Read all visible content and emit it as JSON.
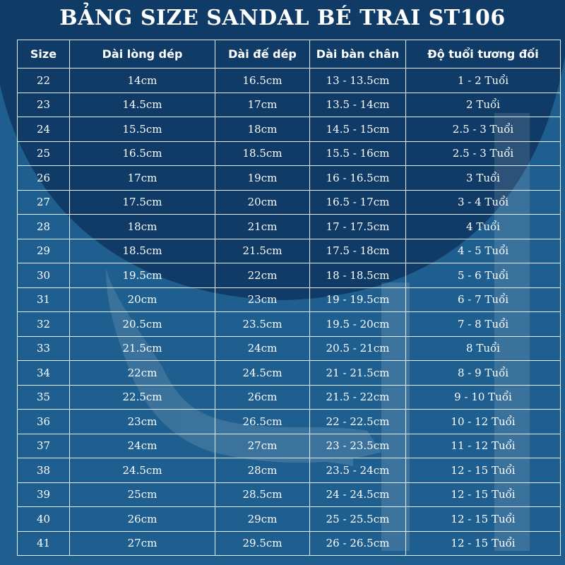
{
  "title": "BẢNG SIZE SANDAL BÉ TRAI ST106",
  "colors": {
    "background": "#1f5f8f",
    "overlay": "#0f3b66",
    "text": "#ffffff",
    "grid": "#e6eef5"
  },
  "table": {
    "headers": [
      "Size",
      "Dài lòng dép",
      "Dài đế dép",
      "Dài bàn chân",
      "Độ tuổi tương đối"
    ],
    "rows": [
      [
        "22",
        "14cm",
        "16.5cm",
        "13 - 13.5cm",
        "1 - 2 Tuổi"
      ],
      [
        "23",
        "14.5cm",
        "17cm",
        "13.5 - 14cm",
        "2 Tuổi"
      ],
      [
        "24",
        "15.5cm",
        "18cm",
        "14.5 - 15cm",
        "2.5 - 3 Tuổi"
      ],
      [
        "25",
        "16.5cm",
        "18.5cm",
        "15.5 - 16cm",
        "2.5 - 3 Tuổi"
      ],
      [
        "26",
        "17cm",
        "19cm",
        "16 - 16.5cm",
        "3 Tuổi"
      ],
      [
        "27",
        "17.5cm",
        "20cm",
        "16.5 - 17cm",
        "3 - 4 Tuổi"
      ],
      [
        "28",
        "18cm",
        "21cm",
        "17 - 17.5cm",
        "4 Tuổi"
      ],
      [
        "29",
        "18.5cm",
        "21.5cm",
        "17.5 - 18cm",
        "4 - 5 Tuổi"
      ],
      [
        "30",
        "19.5cm",
        "22cm",
        "18 - 18.5cm",
        "5 - 6 Tuổi"
      ],
      [
        "31",
        "20cm",
        "23cm",
        "19 - 19.5cm",
        "6 - 7 Tuổi"
      ],
      [
        "32",
        "20.5cm",
        "23.5cm",
        "19.5 - 20cm",
        "7 - 8 Tuổi"
      ],
      [
        "33",
        "21.5cm",
        "24cm",
        "20.5 - 21cm",
        "8 Tuổi"
      ],
      [
        "34",
        "22cm",
        "24.5cm",
        "21 - 21.5cm",
        "8 - 9 Tuổi"
      ],
      [
        "35",
        "22.5cm",
        "26cm",
        "21.5 - 22cm",
        "9 - 10 Tuổi"
      ],
      [
        "36",
        "23cm",
        "26.5cm",
        "22 - 22.5cm",
        "10 - 12 Tuổi"
      ],
      [
        "37",
        "24cm",
        "27cm",
        "23 - 23.5cm",
        "11 - 12 Tuổi"
      ],
      [
        "38",
        "24.5cm",
        "28cm",
        "23.5 - 24cm",
        "12 - 15 Tuổi"
      ],
      [
        "39",
        "25cm",
        "28.5cm",
        "24 - 24.5cm",
        "12 - 15 Tuổi"
      ],
      [
        "40",
        "26cm",
        "29cm",
        "25 - 25.5cm",
        "12 - 15 Tuổi"
      ],
      [
        "41",
        "27cm",
        "29.5cm",
        "26 - 26.5cm",
        "12 - 15 Tuổi"
      ]
    ]
  }
}
